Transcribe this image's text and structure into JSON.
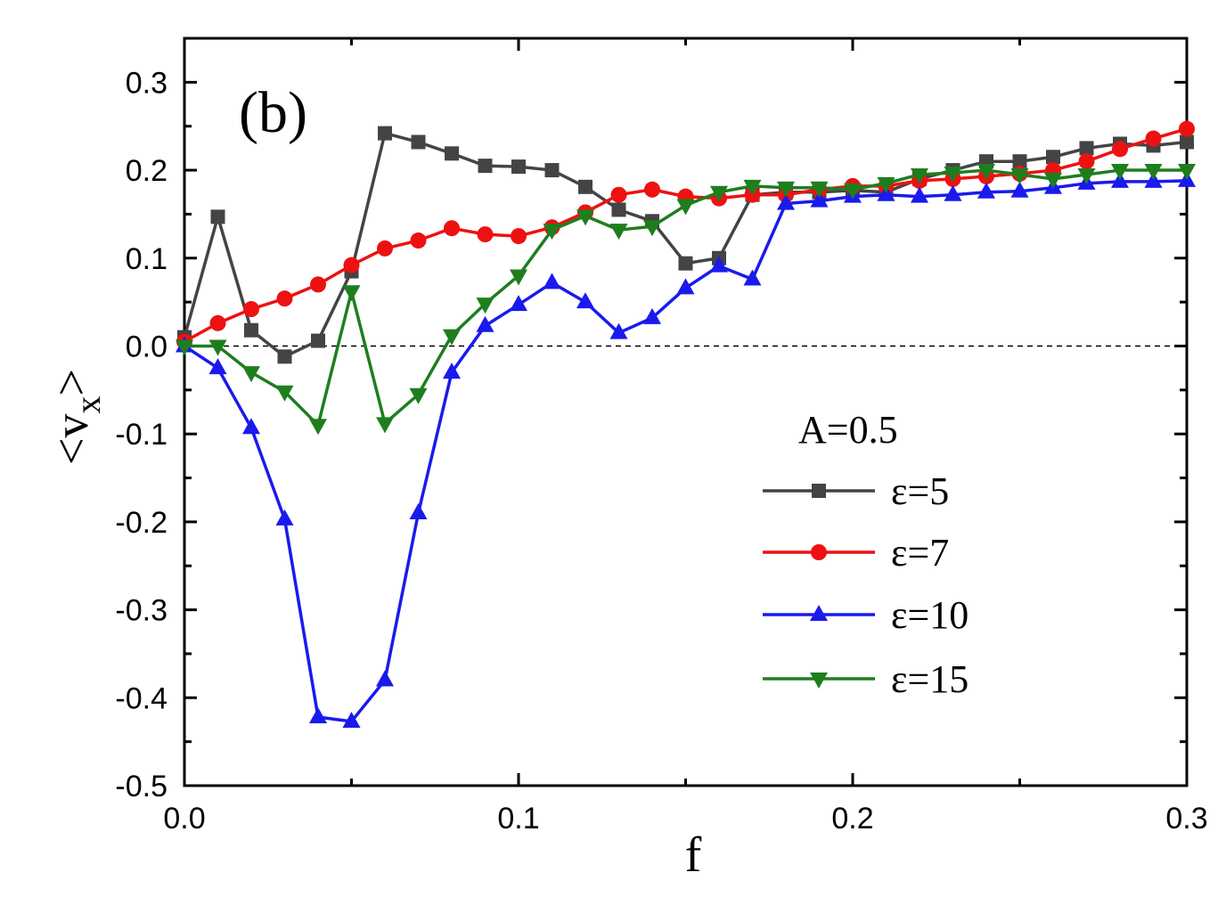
{
  "chart_data": {
    "type": "line",
    "panel_label": "(b)",
    "xlabel": "f",
    "ylabel": "<v",
    "ylabel_subscript": "x",
    "ylabel_close": ">",
    "xlim": [
      0.0,
      0.3
    ],
    "ylim": [
      -0.5,
      0.35
    ],
    "xticks": [
      {
        "value": 0.0,
        "label": "0.0"
      },
      {
        "value": 0.1,
        "label": "0.1"
      },
      {
        "value": 0.2,
        "label": "0.2"
      },
      {
        "value": 0.3,
        "label": "0.3"
      }
    ],
    "yticks": [
      {
        "value": -0.5,
        "label": "-0.5"
      },
      {
        "value": -0.4,
        "label": "-0.4"
      },
      {
        "value": -0.3,
        "label": "-0.3"
      },
      {
        "value": -0.2,
        "label": "-0.2"
      },
      {
        "value": -0.1,
        "label": "-0.1"
      },
      {
        "value": 0.0,
        "label": "0.0"
      },
      {
        "value": 0.1,
        "label": "0.1"
      },
      {
        "value": 0.2,
        "label": "0.2"
      },
      {
        "value": 0.3,
        "label": "0.3"
      }
    ],
    "zero_line": true,
    "legend_title": "A=0.5",
    "legend_position": "lower-right",
    "x": [
      0.0,
      0.01,
      0.02,
      0.03,
      0.04,
      0.05,
      0.06,
      0.07,
      0.08,
      0.09,
      0.1,
      0.11,
      0.12,
      0.13,
      0.14,
      0.15,
      0.16,
      0.17,
      0.18,
      0.19,
      0.2,
      0.21,
      0.22,
      0.23,
      0.24,
      0.25,
      0.26,
      0.27,
      0.28,
      0.29,
      0.3
    ],
    "series": [
      {
        "name": "ε=5",
        "color": "#444444",
        "marker": "square",
        "values": [
          0.01,
          0.147,
          0.018,
          -0.012,
          0.006,
          0.085,
          0.242,
          0.232,
          0.219,
          0.205,
          0.204,
          0.2,
          0.181,
          0.155,
          0.142,
          0.094,
          0.1,
          0.172,
          0.175,
          0.175,
          0.177,
          0.175,
          0.19,
          0.2,
          0.21,
          0.21,
          0.215,
          0.225,
          0.23,
          0.228,
          0.232
        ]
      },
      {
        "name": "ε=7",
        "color": "#ee1111",
        "marker": "circle",
        "values": [
          0.005,
          0.026,
          0.042,
          0.054,
          0.07,
          0.092,
          0.111,
          0.12,
          0.134,
          0.127,
          0.125,
          0.135,
          0.152,
          0.172,
          0.178,
          0.17,
          0.168,
          0.172,
          0.172,
          0.178,
          0.182,
          0.182,
          0.188,
          0.19,
          0.193,
          0.196,
          0.2,
          0.21,
          0.224,
          0.236,
          0.247
        ]
      },
      {
        "name": "ε=10",
        "color": "#1a1aee",
        "marker": "triangle-up",
        "values": [
          0.0,
          -0.025,
          -0.093,
          -0.197,
          -0.422,
          -0.427,
          -0.38,
          -0.19,
          -0.03,
          0.023,
          0.047,
          0.072,
          0.05,
          0.015,
          0.032,
          0.066,
          0.091,
          0.076,
          0.162,
          0.165,
          0.17,
          0.172,
          0.17,
          0.172,
          0.175,
          0.176,
          0.18,
          0.185,
          0.187,
          0.187,
          0.188
        ]
      },
      {
        "name": "ε=15",
        "color": "#1e7e1e",
        "marker": "triangle-down",
        "values": [
          0.0,
          0.0,
          -0.03,
          -0.052,
          -0.09,
          0.062,
          -0.088,
          -0.055,
          0.012,
          0.048,
          0.08,
          0.132,
          0.148,
          0.132,
          0.136,
          0.16,
          0.175,
          0.182,
          0.18,
          0.18,
          0.178,
          0.185,
          0.195,
          0.197,
          0.2,
          0.195,
          0.19,
          0.195,
          0.2,
          0.2,
          0.2
        ]
      }
    ]
  }
}
